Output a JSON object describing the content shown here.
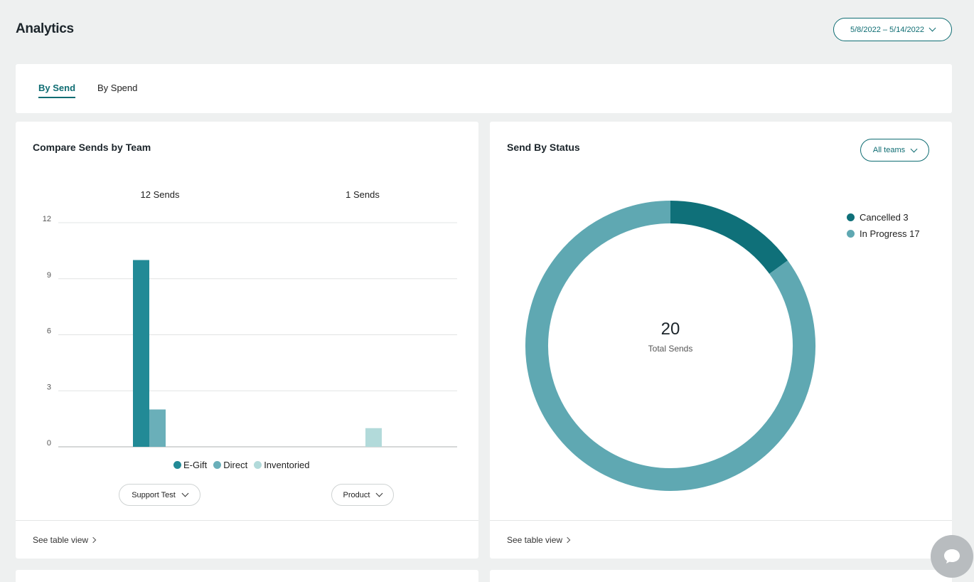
{
  "header": {
    "title": "Analytics",
    "date_range": "5/8/2022 – 5/14/2022"
  },
  "tabs": [
    {
      "label": "By Send",
      "active": true
    },
    {
      "label": "By Spend",
      "active": false
    }
  ],
  "compare_card": {
    "title": "Compare Sends by Team",
    "team_totals": [
      "12 Sends",
      "1 Sends"
    ],
    "team_selectors": [
      "Support Test",
      "Product"
    ],
    "footer_link": "See table view"
  },
  "status_card": {
    "title": "Send By Status",
    "filter_label": "All teams",
    "total_value": "20",
    "total_label": "Total Sends",
    "legend": [
      {
        "label": "Cancelled 3",
        "color": "#0f7079"
      },
      {
        "label": "In Progress 17",
        "color": "#5fa8b2"
      }
    ],
    "footer_link": "See table view"
  },
  "chart_data": [
    {
      "type": "bar",
      "categories": [
        "Support Test",
        "Product"
      ],
      "series": [
        {
          "name": "E-Gift",
          "values": [
            10,
            0
          ],
          "color": "#228a96"
        },
        {
          "name": "Direct",
          "values": [
            2,
            0
          ],
          "color": "#6aafb9"
        },
        {
          "name": "Inventoried",
          "values": [
            0,
            1
          ],
          "color": "#b2dada"
        }
      ],
      "yticks": [
        "0",
        "3",
        "6",
        "9",
        "12"
      ],
      "ylim": [
        0,
        12
      ],
      "grid": true,
      "legend_position": "bottom"
    },
    {
      "type": "pie",
      "donut": true,
      "categories": [
        "Cancelled",
        "In Progress"
      ],
      "values": [
        3,
        17
      ],
      "colors": [
        "#0f7079",
        "#5fa8b2"
      ],
      "legend_position": "right"
    }
  ]
}
